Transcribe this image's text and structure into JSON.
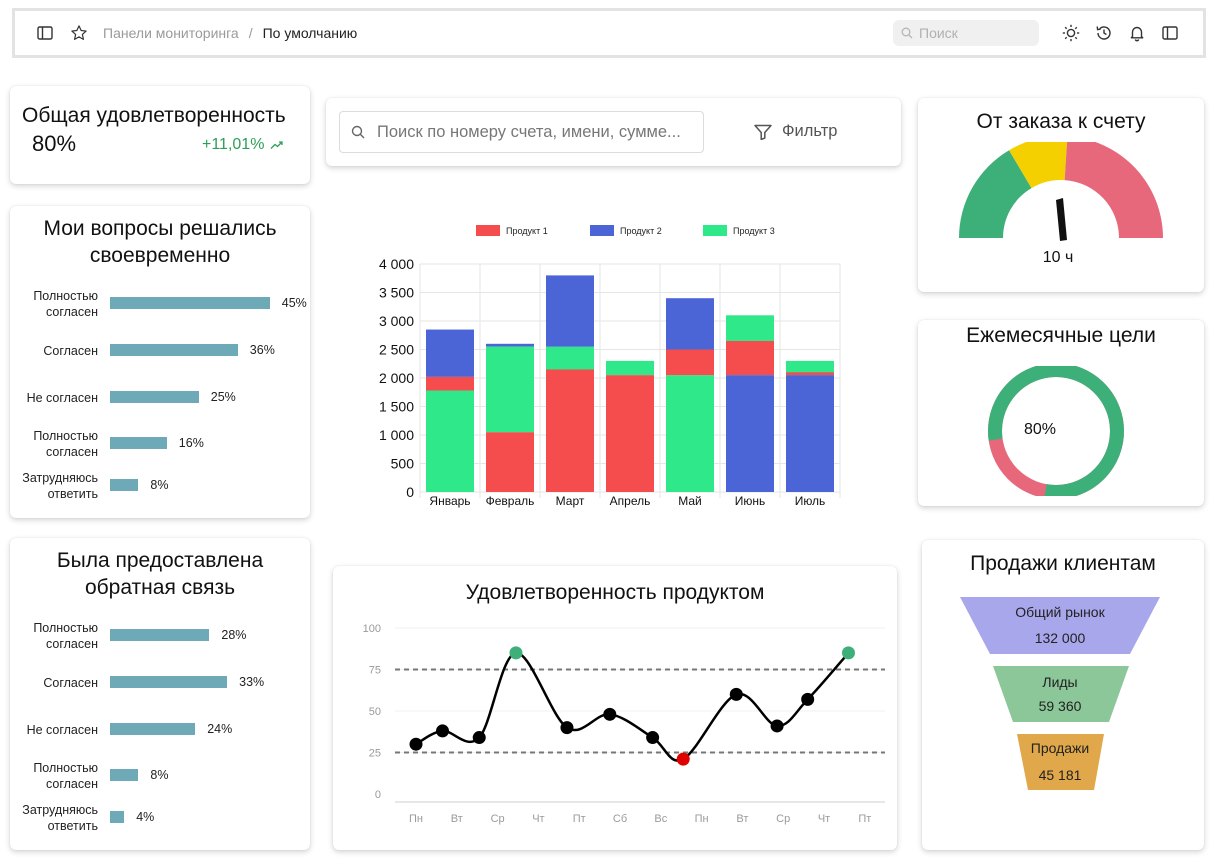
{
  "topbar": {
    "breadcrumb_parent": "Панели мониторинга",
    "breadcrumb_sep": "/",
    "breadcrumb_current": "По умолчанию",
    "search_placeholder": "Поиск"
  },
  "satisfaction": {
    "title": "Общая удовлетворенность",
    "value": "80%",
    "delta": "+11,01%",
    "delta_color": "#2e9e57"
  },
  "issues": {
    "title_line1": "Мои вопросы решались",
    "title_line2": "своевременно",
    "items": [
      {
        "label_l1": "Полностью",
        "label_l2": "согласен",
        "pct": "45%",
        "value": 45
      },
      {
        "label_l1": "Согласен",
        "label_l2": "",
        "pct": "36%",
        "value": 36
      },
      {
        "label_l1": "Не согласен",
        "label_l2": "",
        "pct": "25%",
        "value": 25
      },
      {
        "label_l1": "Полностью",
        "label_l2": "согласен",
        "pct": "16%",
        "value": 16
      },
      {
        "label_l1": "Затрудняюсь",
        "label_l2": "ответить",
        "pct": "8%",
        "value": 8
      }
    ]
  },
  "feedback": {
    "title_line1": "Была предоставлена",
    "title_line2": "обратная связь",
    "items": [
      {
        "label_l1": "Полностью",
        "label_l2": "согласен",
        "pct": "28%",
        "value": 28
      },
      {
        "label_l1": "Согласен",
        "label_l2": "",
        "pct": "33%",
        "value": 33
      },
      {
        "label_l1": "Не согласен",
        "label_l2": "",
        "pct": "24%",
        "value": 24
      },
      {
        "label_l1": "Полностью",
        "label_l2": "согласен",
        "pct": "8%",
        "value": 8
      },
      {
        "label_l1": "Затрудняюсь",
        "label_l2": "ответить",
        "pct": "4%",
        "value": 4
      }
    ]
  },
  "searchbar": {
    "placeholder": "Поиск по номеру счета, имени, сумме...",
    "filter_label": "Фильтр"
  },
  "gauge": {
    "title": "От заказа к счету",
    "value_label": "10 ч",
    "colors": {
      "green": "#3db07a",
      "yellow": "#f5d000",
      "red": "#e8687b"
    }
  },
  "goals": {
    "title": "Ежемесячные цели",
    "value_label": "80%",
    "percent": 80,
    "colors": {
      "done": "#3db07a",
      "rest": "#e8687b"
    }
  },
  "funnel": {
    "title": "Продажи клиентам",
    "stages": [
      {
        "label": "Общий рынок",
        "value": "132 000",
        "color": "#a9a7ec"
      },
      {
        "label": "Лиды",
        "value": "59 360",
        "color": "#8cc79a"
      },
      {
        "label": "Продажи",
        "value": "45 181",
        "color": "#e0a84a"
      }
    ]
  },
  "product_chart": {
    "title": "Удовлетворенность продуктом"
  },
  "chart_data": [
    {
      "type": "bar",
      "stacked": true,
      "title": "",
      "categories": [
        "Январь",
        "Февраль",
        "Март",
        "Апрель",
        "Май",
        "Июнь",
        "Июль"
      ],
      "yticks": [
        "0",
        "500",
        "1 000",
        "1 500",
        "2 000",
        "2 500",
        "3 000",
        "3 500",
        "4 000"
      ],
      "ylim": [
        0,
        4000
      ],
      "legend": "top",
      "grid": true,
      "series": [
        {
          "name": "Продукт 3",
          "color": "#2ee889",
          "segments": [
            [
              0,
              1780
            ],
            null,
            [
              1000,
              2550
            ],
            [
              2050,
              2300
            ],
            [
              0,
              2050
            ],
            [
              2650,
              3100
            ],
            [
              2050,
              2300
            ]
          ]
        },
        {
          "name": "Продукт 1",
          "color": "#f54d4d",
          "segments": [
            [
              1780,
              2020
            ],
            [
              0,
              1050
            ],
            [
              0,
              2150
            ],
            [
              0,
              2050
            ],
            [
              2050,
              2500
            ],
            [
              2050,
              2650
            ],
            [
              2050,
              2100
            ]
          ]
        },
        {
          "name": "Продукт 2",
          "color": "#4b64d6",
          "segments": [
            [
              2020,
              2850
            ],
            [
              2550,
              2600
            ],
            [
              2550,
              3800
            ],
            null,
            [
              2500,
              3400
            ],
            [
              0,
              2050
            ],
            [
              0,
              2050
            ]
          ]
        },
        {
          "name": "Продукт 3",
          "color": "#2ee889",
          "segments": [
            null,
            [
              1050,
              2550
            ],
            null,
            null,
            null,
            null,
            null
          ]
        }
      ],
      "legend_entries": [
        {
          "name": "Продукт 1",
          "color": "#f54d4d"
        },
        {
          "name": "Продукт 2",
          "color": "#4b64d6"
        },
        {
          "name": "Продукт 3",
          "color": "#2ee889"
        }
      ]
    },
    {
      "type": "line",
      "title": "Удовлетворенность продуктом",
      "categories": [
        "Пн",
        "Вт",
        "Ср",
        "Чт",
        "Пт",
        "Сб",
        "Вс",
        "Пн",
        "Вт",
        "Ср",
        "Чт",
        "Пт"
      ],
      "yticks": [
        "0",
        "25",
        "50",
        "75",
        "100"
      ],
      "ylim": [
        0,
        100
      ],
      "thresholds": [
        25,
        75
      ],
      "points": [
        {
          "x": 0,
          "y": 30,
          "color": "#000000"
        },
        {
          "x": 0.65,
          "y": 38,
          "color": "#000000"
        },
        {
          "x": 1.55,
          "y": 34,
          "color": "#000000"
        },
        {
          "x": 2.45,
          "y": 85,
          "color": "#3db07a"
        },
        {
          "x": 3.7,
          "y": 40,
          "color": "#000000"
        },
        {
          "x": 4.75,
          "y": 48,
          "color": "#000000"
        },
        {
          "x": 5.8,
          "y": 34,
          "color": "#000000"
        },
        {
          "x": 6.55,
          "y": 21,
          "color": "#e00000"
        },
        {
          "x": 7.85,
          "y": 60,
          "color": "#000000"
        },
        {
          "x": 8.85,
          "y": 41,
          "color": "#000000"
        },
        {
          "x": 9.6,
          "y": 57,
          "color": "#000000"
        },
        {
          "x": 10.6,
          "y": 85,
          "color": "#3db07a"
        }
      ]
    }
  ]
}
